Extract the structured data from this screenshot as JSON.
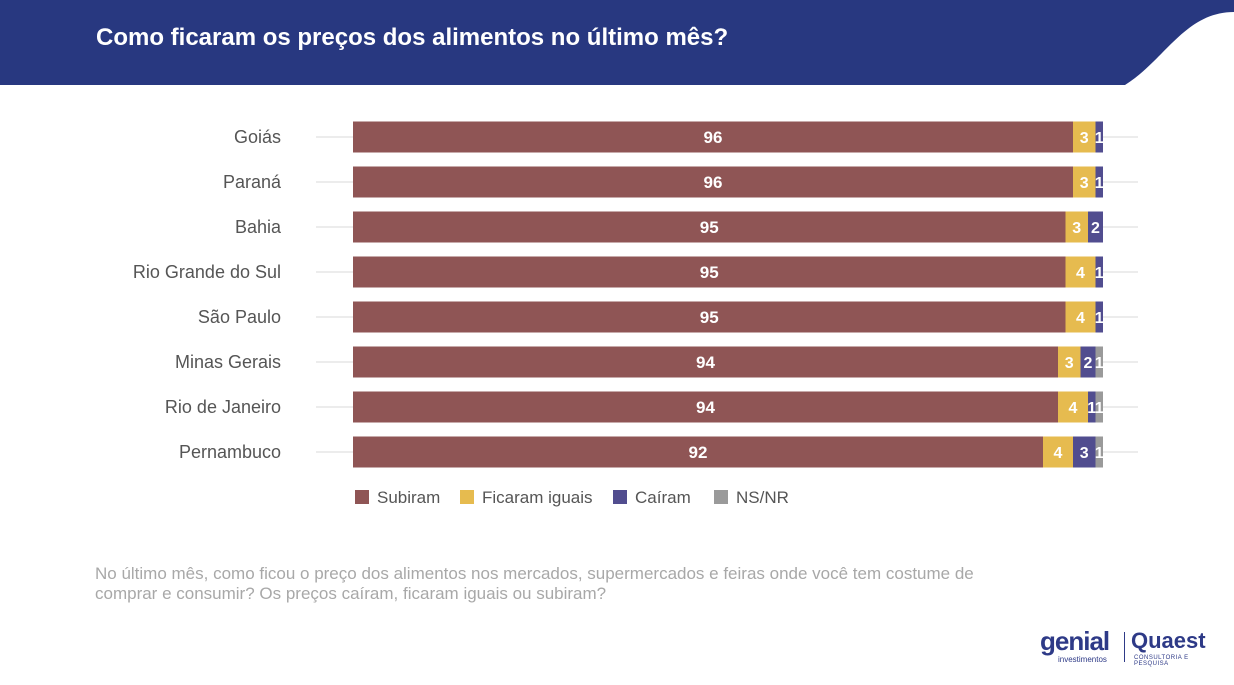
{
  "header": {
    "title": "Como ficaram os preços dos alimentos no último mês?"
  },
  "colors": {
    "header_bg": "#283880",
    "subiram": "#8f5555",
    "ficaram_iguais": "#e6bb4f",
    "cairam": "#514d8f",
    "nsnr": "#9a9a9a"
  },
  "chart_data": {
    "type": "bar",
    "orientation": "horizontal",
    "stacked": true,
    "categories": [
      "Goiás",
      "Paraná",
      "Bahia",
      "Rio Grande do Sul",
      "São Paulo",
      "Minas Gerais",
      "Rio de Janeiro",
      "Pernambuco"
    ],
    "series": [
      {
        "name": "Subiram",
        "color": "#8f5555",
        "values": [
          96,
          96,
          95,
          95,
          95,
          94,
          94,
          92
        ]
      },
      {
        "name": "Ficaram iguais",
        "color": "#e6bb4f",
        "values": [
          3,
          3,
          3,
          4,
          4,
          3,
          4,
          4
        ]
      },
      {
        "name": "Caíram",
        "color": "#514d8f",
        "values": [
          1,
          1,
          2,
          1,
          1,
          2,
          1,
          3
        ]
      },
      {
        "name": "NS/NR",
        "color": "#9a9a9a",
        "values": [
          0,
          0,
          0,
          0,
          0,
          1,
          1,
          1
        ]
      }
    ],
    "xlim": [
      0,
      100
    ],
    "legend_position": "bottom",
    "grid": false
  },
  "question": "No último mês, como ficou o preço dos alimentos nos mercados, supermercados e feiras onde você tem costume de comprar e consumir? Os preços caíram, ficaram iguais ou subiram?",
  "brands": {
    "brand1": "genial",
    "brand1_sub": "investimentos",
    "brand2": "Quaest",
    "brand2_sub": "CONSULTORIA E PESQUISA"
  }
}
